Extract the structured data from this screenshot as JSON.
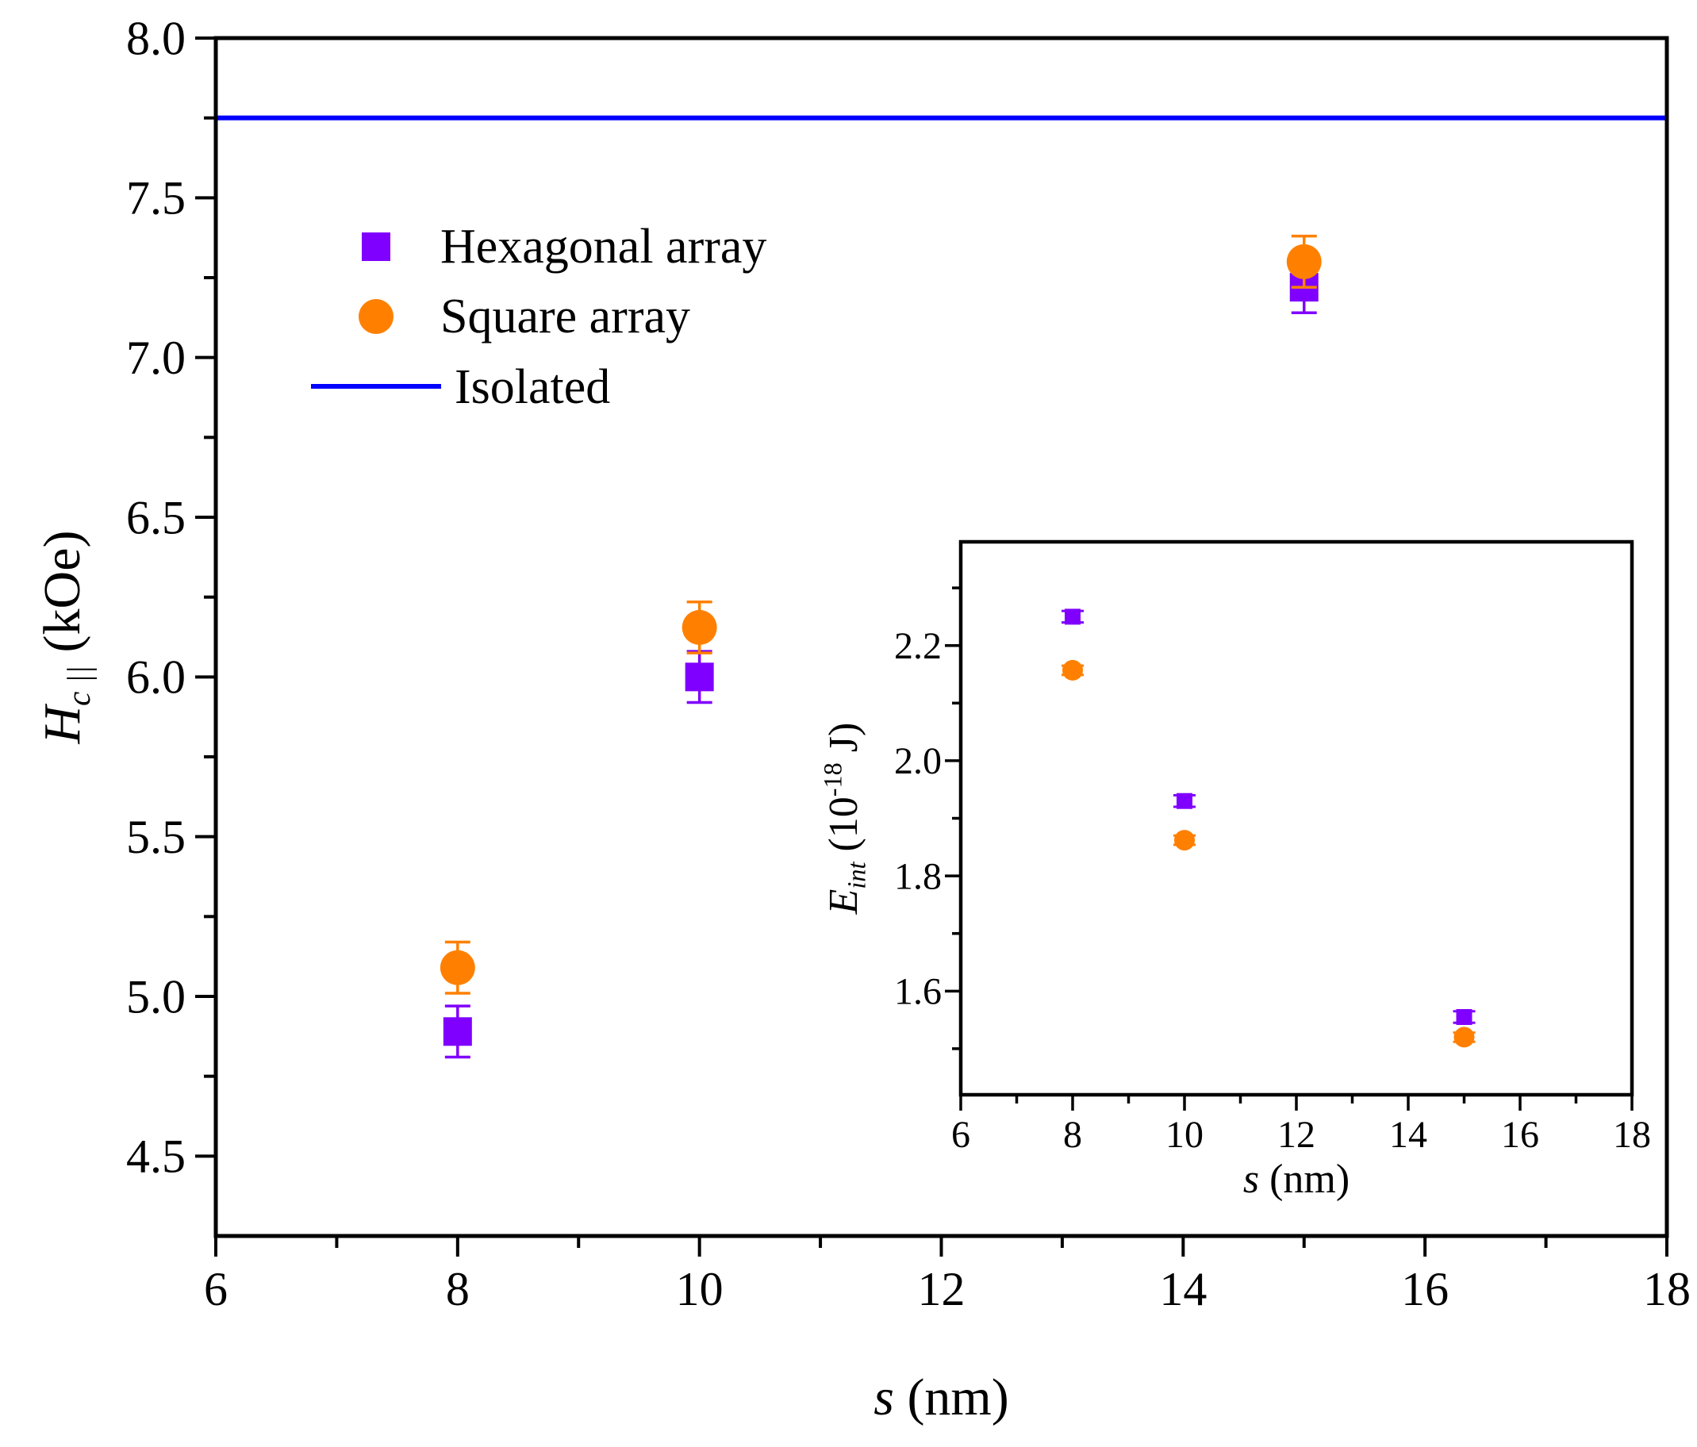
{
  "chart_data": [
    {
      "type": "scatter",
      "title": "",
      "xlabel_italic": "s",
      "xlabel_rest": " (nm)",
      "ylabel_main": "H",
      "ylabel_sub": "c ||",
      "ylabel_rest": " (kOe)",
      "xlim": [
        6,
        18
      ],
      "ylim": [
        4.25,
        8.0
      ],
      "xticks": [
        6,
        8,
        10,
        12,
        14,
        16,
        18
      ],
      "xtick_labels": [
        "6",
        "8",
        "10",
        "12",
        "14",
        "16",
        "18"
      ],
      "yticks": [
        4.5,
        5.0,
        5.5,
        6.0,
        6.5,
        7.0,
        7.5,
        8.0
      ],
      "ytick_labels": [
        "4.5",
        "5.0",
        "5.5",
        "6.0",
        "6.5",
        "7.0",
        "7.5",
        "8.0"
      ],
      "legend_position": "top-left",
      "series": [
        {
          "name": "Hexagonal array",
          "marker": "square",
          "color": "#8000ff",
          "points": [
            {
              "x": 8,
              "y": 4.89,
              "err": 0.08
            },
            {
              "x": 10,
              "y": 6.0,
              "err": 0.08
            },
            {
              "x": 15,
              "y": 7.22,
              "err": 0.08
            }
          ]
        },
        {
          "name": "Square array",
          "marker": "circle",
          "color": "#ff8000",
          "points": [
            {
              "x": 8,
              "y": 5.09,
              "err": 0.08
            },
            {
              "x": 10,
              "y": 6.155,
              "err": 0.08
            },
            {
              "x": 15,
              "y": 7.3,
              "err": 0.08
            }
          ]
        },
        {
          "name": "Isolated",
          "marker": "line",
          "color": "#0000ff",
          "y": 7.75
        }
      ]
    },
    {
      "type": "scatter",
      "title": "",
      "xlabel_italic": "s",
      "xlabel_rest": " (nm)",
      "ylabel_main": "E",
      "ylabel_sub": "int",
      "ylabel_rest": " (10",
      "ylabel_sup": "-18",
      "ylabel_end": " J)",
      "xlim": [
        6,
        18
      ],
      "ylim": [
        1.42,
        2.38
      ],
      "xticks": [
        6,
        8,
        10,
        12,
        14,
        16,
        18
      ],
      "xtick_labels": [
        "6",
        "8",
        "10",
        "12",
        "14",
        "16",
        "18"
      ],
      "yticks": [
        1.6,
        1.8,
        2.0,
        2.2
      ],
      "ytick_labels": [
        "1.6",
        "1.8",
        "2.0",
        "2.2"
      ],
      "series": [
        {
          "name": "Hexagonal array",
          "marker": "square",
          "color": "#8000ff",
          "points": [
            {
              "x": 8,
              "y": 2.25,
              "err": 0.01
            },
            {
              "x": 10,
              "y": 1.93,
              "err": 0.01
            },
            {
              "x": 15,
              "y": 1.555,
              "err": 0.01
            }
          ]
        },
        {
          "name": "Square array",
          "marker": "circle",
          "color": "#ff8000",
          "points": [
            {
              "x": 8,
              "y": 2.157,
              "err": 0.008
            },
            {
              "x": 10,
              "y": 1.862,
              "err": 0.008
            },
            {
              "x": 15,
              "y": 1.52,
              "err": 0.008
            }
          ]
        }
      ]
    }
  ]
}
